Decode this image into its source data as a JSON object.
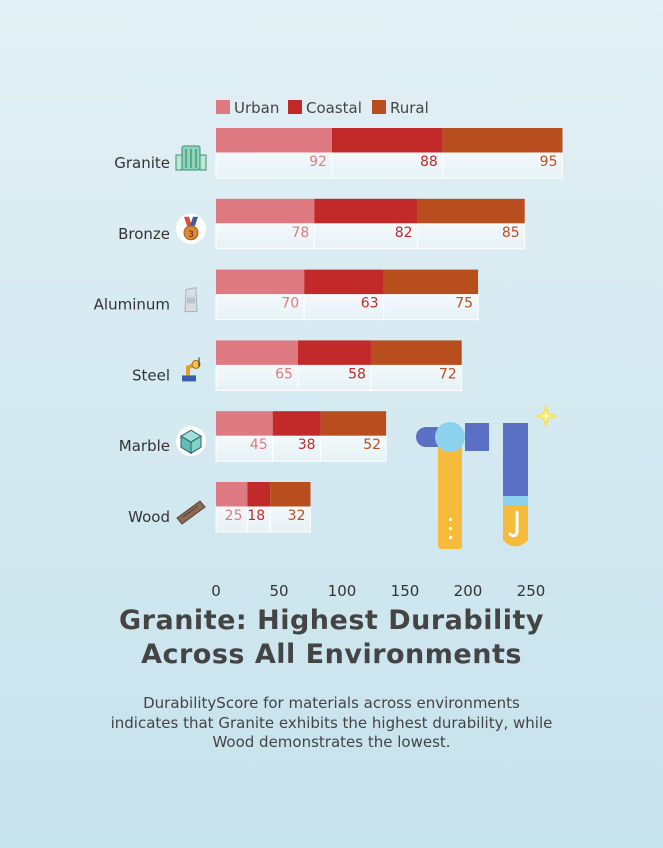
{
  "headline": {
    "line1": "Granite: Highest Durability",
    "line2": "Across All Environments"
  },
  "subtitle": "DurabilityScore for materials across environments indicates that Granite exhibits the highest durability, while Wood demonstrates the lowest.",
  "icons": {
    "Granite": "building-icon",
    "Bronze": "bronze-medal-icon",
    "Aluminum": "aluminum-can-icon",
    "Steel": "welding-robot-icon",
    "Marble": "marble-cube-icon",
    "Wood": "wood-plank-icon",
    "decoration": "hammer-and-chisel-icon"
  },
  "chart_data": {
    "type": "bar",
    "orientation": "horizontal",
    "stacked": true,
    "categories": [
      "Granite",
      "Bronze",
      "Aluminum",
      "Steel",
      "Marble",
      "Wood"
    ],
    "series": [
      {
        "name": "Urban",
        "color": "#e07a82",
        "values": [
          92,
          78,
          70,
          65,
          45,
          25
        ]
      },
      {
        "name": "Coastal",
        "color": "#c22a2a",
        "values": [
          88,
          82,
          63,
          58,
          38,
          18
        ]
      },
      {
        "name": "Rural",
        "color": "#b84e1e",
        "values": [
          95,
          85,
          75,
          72,
          52,
          32
        ]
      }
    ],
    "xlim": [
      0,
      275
    ],
    "xticks": [
      0,
      50,
      100,
      150,
      200,
      250
    ],
    "legend_position": "top-left",
    "grid": false
  }
}
